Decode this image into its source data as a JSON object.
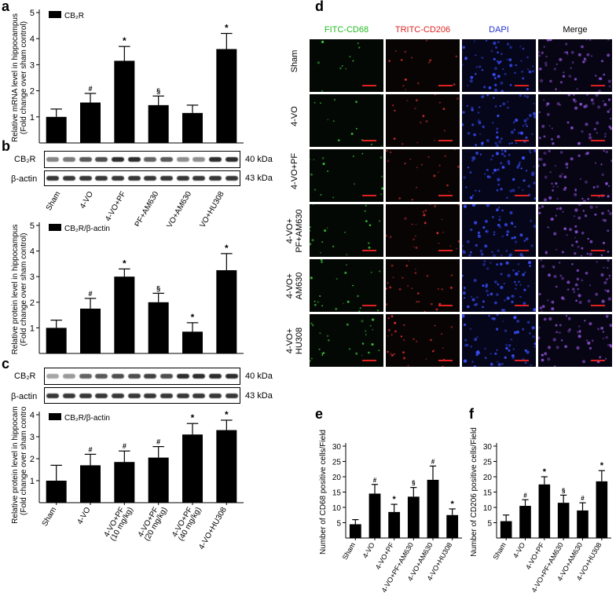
{
  "panel_labels": {
    "a": "a",
    "b": "b",
    "c": "c",
    "d": "d",
    "e": "e",
    "f": "f"
  },
  "blots": {
    "b": {
      "target": "CB₂R",
      "loading": "β-actin",
      "target_kda": "40 kDa",
      "loading_kda": "43 kDa",
      "lanes": 6
    },
    "c": {
      "target": "CB₂R",
      "loading": "β-actin",
      "target_kda": "40 kDa",
      "loading_kda": "43 kDa",
      "lanes": 12
    }
  },
  "micrograph": {
    "columns": [
      "FITC-CD68",
      "TRITC-CD206",
      "DAPI",
      "Merge"
    ],
    "column_colors": [
      "#22bb22",
      "#dd2222",
      "#2233cc",
      "#000000"
    ],
    "rows": [
      "Sham",
      "4-VO",
      "4-VO+PF",
      "4-VO+\nPF+AM630",
      "4-VO+\nAM630",
      "4-VO+\nHU308"
    ]
  },
  "chart_data": [
    {
      "id": "a",
      "type": "bar",
      "categories": [
        "Sham",
        "4-VO",
        "4-VO+PF",
        "4-VO+PF+AM630",
        "4-VO+AM630",
        "4-VO+HU308"
      ],
      "series": [
        {
          "name": "CB₂R",
          "values": [
            1.0,
            1.55,
            3.15,
            1.45,
            1.15,
            3.6
          ],
          "errors": [
            0.3,
            0.35,
            0.55,
            0.35,
            0.3,
            0.6
          ],
          "annotations": [
            "",
            "#",
            "*",
            "§",
            "",
            "*"
          ]
        }
      ],
      "ylabel": "Relative mRNA level in hippocampus\n(Fold change over sham control)",
      "ylim": [
        0,
        5
      ],
      "yticks": [
        1,
        2,
        3,
        4,
        5
      ],
      "legend": "top-left",
      "show_xticklabels": false
    },
    {
      "id": "b",
      "type": "bar",
      "categories": [
        "Sham",
        "4-VO",
        "4-VO+PF",
        "4-VO+PF+AM630",
        "4-VO+AM630",
        "4-VO+HU308"
      ],
      "series": [
        {
          "name": "CB₂R/β-actin",
          "values": [
            1.0,
            1.75,
            3.0,
            2.0,
            0.85,
            3.25
          ],
          "errors": [
            0.3,
            0.4,
            0.3,
            0.35,
            0.35,
            0.65
          ],
          "annotations": [
            "",
            "#",
            "*",
            "§",
            "*",
            "*"
          ]
        }
      ],
      "ylabel": "Relative protein level in hippocampus\n(Fold change over sham control)",
      "ylim": [
        0,
        5
      ],
      "yticks": [
        1,
        2,
        3,
        4,
        5
      ],
      "legend": "top-left",
      "show_xticklabels": false
    },
    {
      "id": "c",
      "type": "bar",
      "categories": [
        "Sham",
        "4-VO",
        "4-VO+PF\n(10 mg/kg)",
        "4-VO+PF\n(20 mg/kg)",
        "4-VO+PF\n(40 mg/kg)",
        "4-VO+HU308"
      ],
      "series": [
        {
          "name": "CB₂R/β-actin",
          "values": [
            1.0,
            1.7,
            1.85,
            2.05,
            3.1,
            3.3
          ],
          "errors": [
            0.7,
            0.5,
            0.5,
            0.5,
            0.5,
            0.45
          ],
          "annotations": [
            "",
            "#",
            "#",
            "#",
            "*",
            "*"
          ]
        }
      ],
      "ylabel": "Relative protein level in hippocampus\n(Fold change over sham control)",
      "ylim": [
        0,
        4
      ],
      "yticks": [
        1,
        2,
        3,
        4
      ],
      "legend": "top-left",
      "show_xticklabels": true
    },
    {
      "id": "e",
      "type": "bar",
      "categories": [
        "Sham",
        "4-VO",
        "4-VO+PF",
        "4-VO+PF+AM630",
        "4-VO+AM630",
        "4-VO+HU308"
      ],
      "series": [
        {
          "name": "",
          "values": [
            4.5,
            14.5,
            8.5,
            13.5,
            19,
            7.5
          ],
          "errors": [
            1.5,
            3,
            2.5,
            3,
            4.5,
            2
          ],
          "annotations": [
            "",
            "#",
            "*",
            "§",
            "#",
            "*"
          ]
        }
      ],
      "ylabel": "Number of CD68 positive cells/Field",
      "ylim": [
        0,
        30
      ],
      "yticks": [
        5,
        10,
        15,
        20,
        25,
        30
      ],
      "legend": "none",
      "show_xticklabels": true
    },
    {
      "id": "f",
      "type": "bar",
      "categories": [
        "Sham",
        "4-VO",
        "4-VO+PF",
        "4-VO+PF+AM630",
        "4-VO+AM630",
        "4-VO+HU308"
      ],
      "series": [
        {
          "name": "",
          "values": [
            5.5,
            10.5,
            17.5,
            11.5,
            9,
            18.5
          ],
          "errors": [
            2,
            2,
            2.5,
            2.5,
            2.5,
            3.5
          ],
          "annotations": [
            "",
            "#",
            "*",
            "§",
            "#",
            "*"
          ]
        }
      ],
      "ylabel": "Number of CD206 positive cells/Field",
      "ylim": [
        0,
        30
      ],
      "yticks": [
        5,
        10,
        15,
        20,
        25,
        30
      ],
      "legend": "none",
      "show_xticklabels": true
    }
  ]
}
